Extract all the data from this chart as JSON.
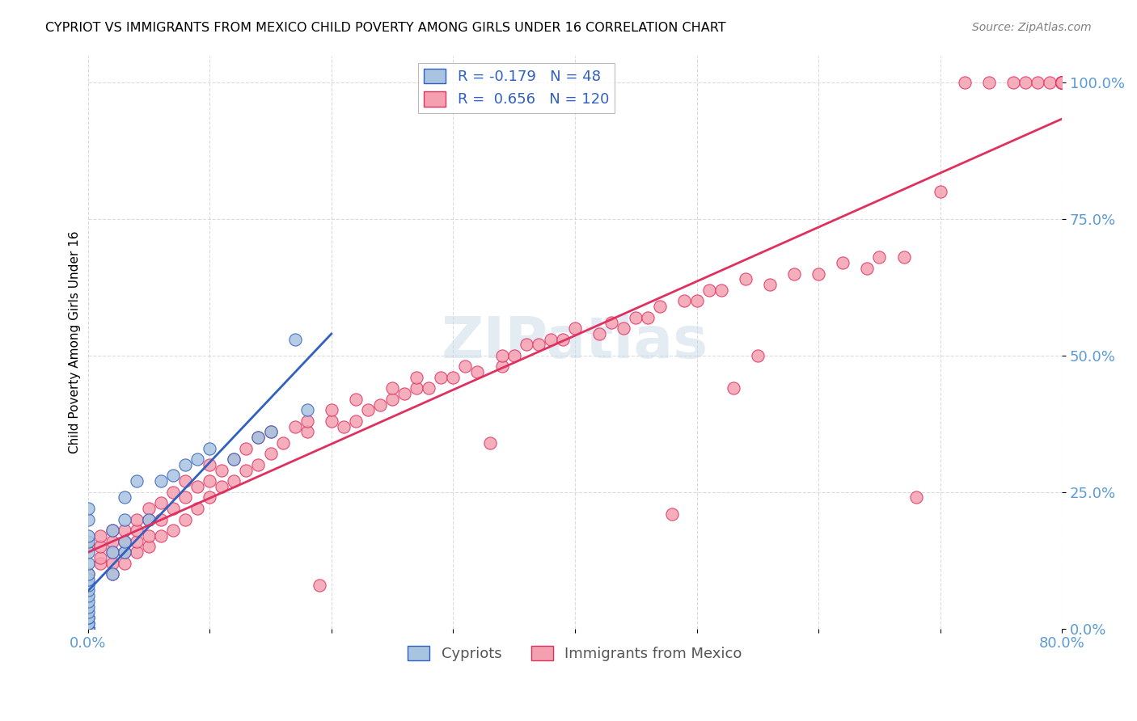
{
  "title": "CYPRIOT VS IMMIGRANTS FROM MEXICO CHILD POVERTY AMONG GIRLS UNDER 16 CORRELATION CHART",
  "source": "Source: ZipAtlas.com",
  "xlabel": "",
  "ylabel": "Child Poverty Among Girls Under 16",
  "xlim": [
    0.0,
    0.8
  ],
  "ylim": [
    0.0,
    1.05
  ],
  "xticks": [
    0.0,
    0.1,
    0.2,
    0.3,
    0.4,
    0.5,
    0.6,
    0.7,
    0.8
  ],
  "xticklabels": [
    "0.0%",
    "",
    "",
    "",
    "",
    "",
    "",
    "",
    "80.0%"
  ],
  "yticks": [
    0.0,
    0.25,
    0.5,
    0.75,
    1.0
  ],
  "yticklabels": [
    "0.0%",
    "25.0%",
    "50.0%",
    "75.0%",
    "100.0%"
  ],
  "cypriot_color": "#a8c4e0",
  "mexico_color": "#f4a0b0",
  "cypriot_line_color": "#3060c0",
  "mexico_line_color": "#e03060",
  "cypriot_R": -0.179,
  "cypriot_N": 48,
  "mexico_R": 0.656,
  "mexico_N": 120,
  "watermark": "ZIPatlas",
  "legend_x_label": "Cypriots",
  "legend_pink_label": "Immigrants from Mexico",
  "background_color": "#ffffff",
  "grid_color": "#cccccc",
  "tick_color": "#5b9bd5",
  "cypriot_points_x": [
    0.0,
    0.0,
    0.0,
    0.0,
    0.0,
    0.0,
    0.0,
    0.0,
    0.0,
    0.0,
    0.0,
    0.0,
    0.0,
    0.0,
    0.0,
    0.0,
    0.0,
    0.0,
    0.0,
    0.0,
    0.0,
    0.0,
    0.0,
    0.0,
    0.0,
    0.0,
    0.0,
    0.0,
    0.0,
    0.02,
    0.02,
    0.02,
    0.03,
    0.03,
    0.03,
    0.03,
    0.04,
    0.05,
    0.06,
    0.07,
    0.08,
    0.09,
    0.1,
    0.12,
    0.14,
    0.15,
    0.17,
    0.18
  ],
  "cypriot_points_y": [
    0.0,
    0.0,
    0.0,
    0.0,
    0.0,
    0.0,
    0.0,
    0.0,
    0.0,
    0.0,
    0.0,
    0.01,
    0.01,
    0.02,
    0.02,
    0.03,
    0.04,
    0.05,
    0.06,
    0.07,
    0.08,
    0.09,
    0.1,
    0.12,
    0.14,
    0.16,
    0.17,
    0.2,
    0.22,
    0.1,
    0.14,
    0.18,
    0.14,
    0.16,
    0.2,
    0.24,
    0.27,
    0.2,
    0.27,
    0.28,
    0.3,
    0.31,
    0.33,
    0.31,
    0.35,
    0.36,
    0.53,
    0.4
  ],
  "mexico_points_x": [
    0.0,
    0.0,
    0.01,
    0.01,
    0.01,
    0.01,
    0.02,
    0.02,
    0.02,
    0.02,
    0.02,
    0.03,
    0.03,
    0.03,
    0.03,
    0.04,
    0.04,
    0.04,
    0.04,
    0.05,
    0.05,
    0.05,
    0.05,
    0.06,
    0.06,
    0.06,
    0.07,
    0.07,
    0.07,
    0.08,
    0.08,
    0.08,
    0.09,
    0.09,
    0.1,
    0.1,
    0.1,
    0.11,
    0.11,
    0.12,
    0.12,
    0.13,
    0.13,
    0.14,
    0.14,
    0.15,
    0.15,
    0.16,
    0.17,
    0.18,
    0.18,
    0.19,
    0.2,
    0.2,
    0.21,
    0.22,
    0.22,
    0.23,
    0.24,
    0.25,
    0.25,
    0.26,
    0.27,
    0.27,
    0.28,
    0.29,
    0.3,
    0.31,
    0.32,
    0.33,
    0.34,
    0.34,
    0.35,
    0.36,
    0.37,
    0.38,
    0.39,
    0.4,
    0.42,
    0.43,
    0.44,
    0.45,
    0.46,
    0.47,
    0.48,
    0.49,
    0.5,
    0.51,
    0.52,
    0.53,
    0.54,
    0.55,
    0.56,
    0.58,
    0.6,
    0.62,
    0.64,
    0.65,
    0.67,
    0.68,
    0.7,
    0.72,
    0.74,
    0.76,
    0.77,
    0.78,
    0.79,
    0.8,
    0.8,
    0.8,
    0.8,
    0.8,
    0.8,
    0.8,
    0.8,
    0.8,
    0.8,
    0.8,
    0.8,
    0.8
  ],
  "mexico_points_y": [
    0.1,
    0.15,
    0.12,
    0.13,
    0.15,
    0.17,
    0.1,
    0.12,
    0.14,
    0.16,
    0.18,
    0.12,
    0.14,
    0.16,
    0.18,
    0.14,
    0.16,
    0.18,
    0.2,
    0.15,
    0.17,
    0.2,
    0.22,
    0.17,
    0.2,
    0.23,
    0.18,
    0.22,
    0.25,
    0.2,
    0.24,
    0.27,
    0.22,
    0.26,
    0.24,
    0.27,
    0.3,
    0.26,
    0.29,
    0.27,
    0.31,
    0.29,
    0.33,
    0.3,
    0.35,
    0.32,
    0.36,
    0.34,
    0.37,
    0.36,
    0.38,
    0.08,
    0.38,
    0.4,
    0.37,
    0.38,
    0.42,
    0.4,
    0.41,
    0.42,
    0.44,
    0.43,
    0.44,
    0.46,
    0.44,
    0.46,
    0.46,
    0.48,
    0.47,
    0.34,
    0.48,
    0.5,
    0.5,
    0.52,
    0.52,
    0.53,
    0.53,
    0.55,
    0.54,
    0.56,
    0.55,
    0.57,
    0.57,
    0.59,
    0.21,
    0.6,
    0.6,
    0.62,
    0.62,
    0.44,
    0.64,
    0.5,
    0.63,
    0.65,
    0.65,
    0.67,
    0.66,
    0.68,
    0.68,
    0.24,
    0.8,
    1.0,
    1.0,
    1.0,
    1.0,
    1.0,
    1.0,
    1.0,
    1.0,
    1.0,
    1.0,
    1.0,
    1.0,
    1.0,
    1.0,
    1.0,
    1.0,
    1.0,
    1.0,
    1.0
  ]
}
